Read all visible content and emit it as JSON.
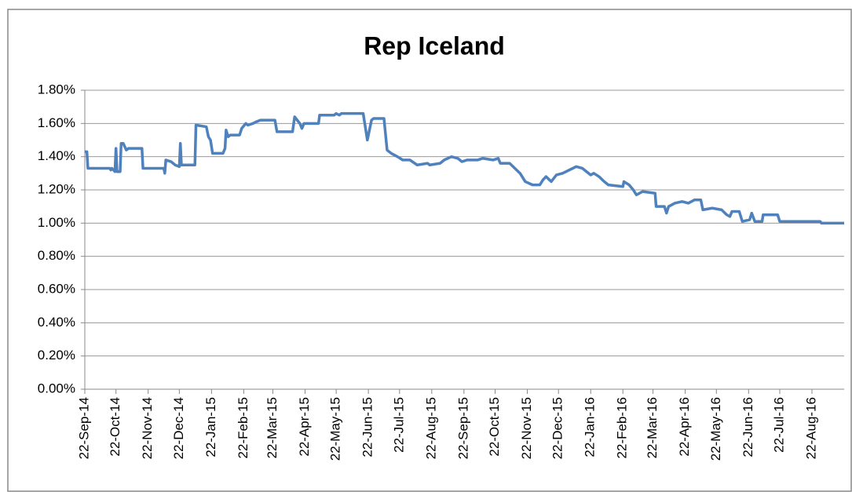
{
  "chart_data": {
    "type": "line",
    "title": "Rep Iceland",
    "x": [
      "2014-09-22",
      "2014-09-24",
      "2014-09-25",
      "2014-10-16",
      "2014-10-17",
      "2014-10-18",
      "2014-10-21",
      "2014-10-22",
      "2014-10-23",
      "2014-10-26",
      "2014-10-27",
      "2014-10-29",
      "2014-11-01",
      "2014-11-03",
      "2014-11-16",
      "2014-11-17",
      "2014-12-07",
      "2014-12-08",
      "2014-12-09",
      "2014-12-14",
      "2014-12-18",
      "2014-12-22",
      "2014-12-23",
      "2014-12-24",
      "2015-01-06",
      "2015-01-07",
      "2015-01-17",
      "2015-01-19",
      "2015-01-21",
      "2015-01-23",
      "2015-02-02",
      "2015-02-04",
      "2015-02-05",
      "2015-02-07",
      "2015-02-09",
      "2015-02-18",
      "2015-02-20",
      "2015-02-24",
      "2015-02-26",
      "2015-03-03",
      "2015-03-06",
      "2015-03-10",
      "2015-03-24",
      "2015-03-26",
      "2015-04-10",
      "2015-04-12",
      "2015-04-17",
      "2015-04-19",
      "2015-04-21",
      "2015-05-05",
      "2015-05-06",
      "2015-05-20",
      "2015-05-22",
      "2015-05-25",
      "2015-05-27",
      "2015-06-17",
      "2015-06-21",
      "2015-06-25",
      "2015-06-27",
      "2015-07-07",
      "2015-07-10",
      "2015-07-14",
      "2015-07-20",
      "2015-07-25",
      "2015-08-01",
      "2015-08-08",
      "2015-08-18",
      "2015-08-20",
      "2015-08-30",
      "2015-09-03",
      "2015-09-10",
      "2015-09-16",
      "2015-09-20",
      "2015-09-25",
      "2015-10-05",
      "2015-10-10",
      "2015-10-20",
      "2015-10-25",
      "2015-10-27",
      "2015-11-05",
      "2015-11-10",
      "2015-11-15",
      "2015-11-20",
      "2015-11-27",
      "2015-12-04",
      "2015-12-07",
      "2015-12-10",
      "2015-12-15",
      "2015-12-20",
      "2015-12-26",
      "2016-01-08",
      "2016-01-14",
      "2016-01-18",
      "2016-01-22",
      "2016-01-25",
      "2016-01-30",
      "2016-02-04",
      "2016-02-08",
      "2016-02-22",
      "2016-02-23",
      "2016-02-28",
      "2016-03-03",
      "2016-03-06",
      "2016-03-12",
      "2016-03-24",
      "2016-03-25",
      "2016-04-02",
      "2016-04-04",
      "2016-04-06",
      "2016-04-12",
      "2016-04-19",
      "2016-04-25",
      "2016-05-01",
      "2016-05-07",
      "2016-05-09",
      "2016-05-18",
      "2016-05-27",
      "2016-06-01",
      "2016-06-04",
      "2016-06-06",
      "2016-06-13",
      "2016-06-16",
      "2016-06-23",
      "2016-06-25",
      "2016-06-28",
      "2016-07-05",
      "2016-07-06",
      "2016-07-20",
      "2016-07-22",
      "2016-08-30",
      "2016-08-31",
      "2016-09-22"
    ],
    "series": [
      {
        "name": "Rep Iceland",
        "color": "#4f81bd",
        "values": [
          1.43,
          1.43,
          1.33,
          1.33,
          1.32,
          1.33,
          1.31,
          1.45,
          1.31,
          1.31,
          1.48,
          1.48,
          1.44,
          1.45,
          1.45,
          1.33,
          1.33,
          1.3,
          1.38,
          1.37,
          1.35,
          1.34,
          1.48,
          1.35,
          1.35,
          1.59,
          1.58,
          1.52,
          1.5,
          1.42,
          1.42,
          1.45,
          1.56,
          1.52,
          1.53,
          1.53,
          1.57,
          1.6,
          1.59,
          1.6,
          1.61,
          1.62,
          1.62,
          1.55,
          1.55,
          1.64,
          1.6,
          1.57,
          1.6,
          1.6,
          1.65,
          1.65,
          1.66,
          1.65,
          1.66,
          1.66,
          1.5,
          1.62,
          1.63,
          1.63,
          1.44,
          1.42,
          1.4,
          1.38,
          1.38,
          1.35,
          1.36,
          1.35,
          1.36,
          1.38,
          1.4,
          1.39,
          1.37,
          1.38,
          1.38,
          1.39,
          1.38,
          1.39,
          1.36,
          1.36,
          1.33,
          1.3,
          1.25,
          1.23,
          1.23,
          1.26,
          1.28,
          1.25,
          1.29,
          1.3,
          1.34,
          1.33,
          1.31,
          1.29,
          1.3,
          1.28,
          1.25,
          1.23,
          1.22,
          1.25,
          1.23,
          1.2,
          1.17,
          1.19,
          1.18,
          1.1,
          1.1,
          1.06,
          1.1,
          1.12,
          1.13,
          1.12,
          1.14,
          1.14,
          1.08,
          1.09,
          1.08,
          1.05,
          1.04,
          1.07,
          1.07,
          1.01,
          1.02,
          1.06,
          1.01,
          1.01,
          1.05,
          1.05,
          1.01,
          1.01,
          1.0,
          1.0
        ]
      }
    ],
    "xlim": [
      "2014-09-22",
      "2016-09-22"
    ],
    "xticks": [
      {
        "value": "2014-09-22",
        "label": "22-Sep-14"
      },
      {
        "value": "2014-10-22",
        "label": "22-Oct-14"
      },
      {
        "value": "2014-11-22",
        "label": "22-Nov-14"
      },
      {
        "value": "2014-12-22",
        "label": "22-Dec-14"
      },
      {
        "value": "2015-01-22",
        "label": "22-Jan-15"
      },
      {
        "value": "2015-02-22",
        "label": "22-Feb-15"
      },
      {
        "value": "2015-03-22",
        "label": "22-Mar-15"
      },
      {
        "value": "2015-04-22",
        "label": "22-Apr-15"
      },
      {
        "value": "2015-05-22",
        "label": "22-May-15"
      },
      {
        "value": "2015-06-22",
        "label": "22-Jun-15"
      },
      {
        "value": "2015-07-22",
        "label": "22-Jul-15"
      },
      {
        "value": "2015-08-22",
        "label": "22-Aug-15"
      },
      {
        "value": "2015-09-22",
        "label": "22-Sep-15"
      },
      {
        "value": "2015-10-22",
        "label": "22-Oct-15"
      },
      {
        "value": "2015-11-22",
        "label": "22-Nov-15"
      },
      {
        "value": "2015-12-22",
        "label": "22-Dec-15"
      },
      {
        "value": "2016-01-22",
        "label": "22-Jan-16"
      },
      {
        "value": "2016-02-22",
        "label": "22-Feb-16"
      },
      {
        "value": "2016-03-22",
        "label": "22-Mar-16"
      },
      {
        "value": "2016-04-22",
        "label": "22-Apr-16"
      },
      {
        "value": "2016-05-22",
        "label": "22-May-16"
      },
      {
        "value": "2016-06-22",
        "label": "22-Jun-16"
      },
      {
        "value": "2016-07-22",
        "label": "22-Jul-16"
      },
      {
        "value": "2016-08-22",
        "label": "22-Aug-16"
      }
    ],
    "ylim": [
      0,
      1.8
    ],
    "yticks": [
      {
        "value": 0,
        "label": "0.00%"
      },
      {
        "value": 0.2,
        "label": "0.20%"
      },
      {
        "value": 0.4,
        "label": "0.40%"
      },
      {
        "value": 0.6,
        "label": "0.60%"
      },
      {
        "value": 0.8,
        "label": "0.80%"
      },
      {
        "value": 1.0,
        "label": "1.00%"
      },
      {
        "value": 1.2,
        "label": "1.20%"
      },
      {
        "value": 1.4,
        "label": "1.40%"
      },
      {
        "value": 1.6,
        "label": "1.60%"
      },
      {
        "value": 1.8,
        "label": "1.80%"
      }
    ],
    "grid": true
  }
}
